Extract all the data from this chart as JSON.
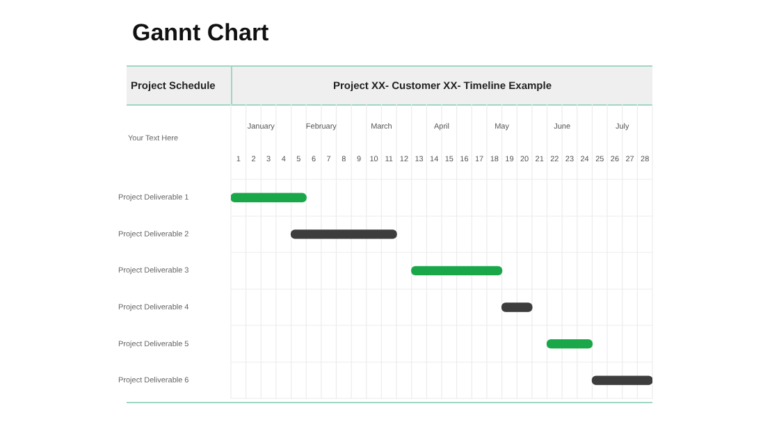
{
  "chart_data": {
    "type": "bar",
    "orientation": "horizontal",
    "title": "Gannt Chart",
    "x2label": "Project XX- Customer XX- Timeline Example",
    "annotations": [
      "Project Schedule",
      "Your Text Here",
      "January",
      "February",
      "March",
      "April",
      "May",
      "June",
      "July"
    ],
    "categories": [
      "Project Deliverable 1",
      "Project Deliverable 2",
      "Project Deliverable 3",
      "Project Deliverable 4",
      "Project Deliverable 5",
      "Project Deliverable 6"
    ],
    "base": [
      0,
      4,
      12,
      18,
      21,
      24
    ],
    "values": [
      5,
      7,
      6,
      2,
      3,
      4
    ],
    "colors": [
      "#1aa74a",
      "#3d3d3d",
      "#1aa74a",
      "#3d3d3d",
      "#1aa74a",
      "#3d3d3d"
    ],
    "xlim": [
      0,
      28
    ],
    "xticks": [
      {
        "value": 0.5,
        "label": "1"
      },
      {
        "value": 1.5,
        "label": "2"
      },
      {
        "value": 2.5,
        "label": "3"
      },
      {
        "value": 3.5,
        "label": "4"
      },
      {
        "value": 4.5,
        "label": "5"
      },
      {
        "value": 5.5,
        "label": "6"
      },
      {
        "value": 6.5,
        "label": "7"
      },
      {
        "value": 7.5,
        "label": "8"
      },
      {
        "value": 8.5,
        "label": "9"
      },
      {
        "value": 9.5,
        "label": "10"
      },
      {
        "value": 10.5,
        "label": "11"
      },
      {
        "value": 11.5,
        "label": "12"
      },
      {
        "value": 12.5,
        "label": "13"
      },
      {
        "value": 13.5,
        "label": "14"
      },
      {
        "value": 14.5,
        "label": "15"
      },
      {
        "value": 15.5,
        "label": "16"
      },
      {
        "value": 16.5,
        "label": "17"
      },
      {
        "value": 17.5,
        "label": "18"
      },
      {
        "value": 18.5,
        "label": "19"
      },
      {
        "value": 19.5,
        "label": "20"
      },
      {
        "value": 20.5,
        "label": "21"
      },
      {
        "value": 21.5,
        "label": "22"
      },
      {
        "value": 22.5,
        "label": "23"
      },
      {
        "value": 23.5,
        "label": "24"
      },
      {
        "value": 24.5,
        "label": "25"
      },
      {
        "value": 25.5,
        "label": "26"
      },
      {
        "value": 26.5,
        "label": "27"
      },
      {
        "value": 27.5,
        "label": "28"
      }
    ],
    "grid": true
  }
}
